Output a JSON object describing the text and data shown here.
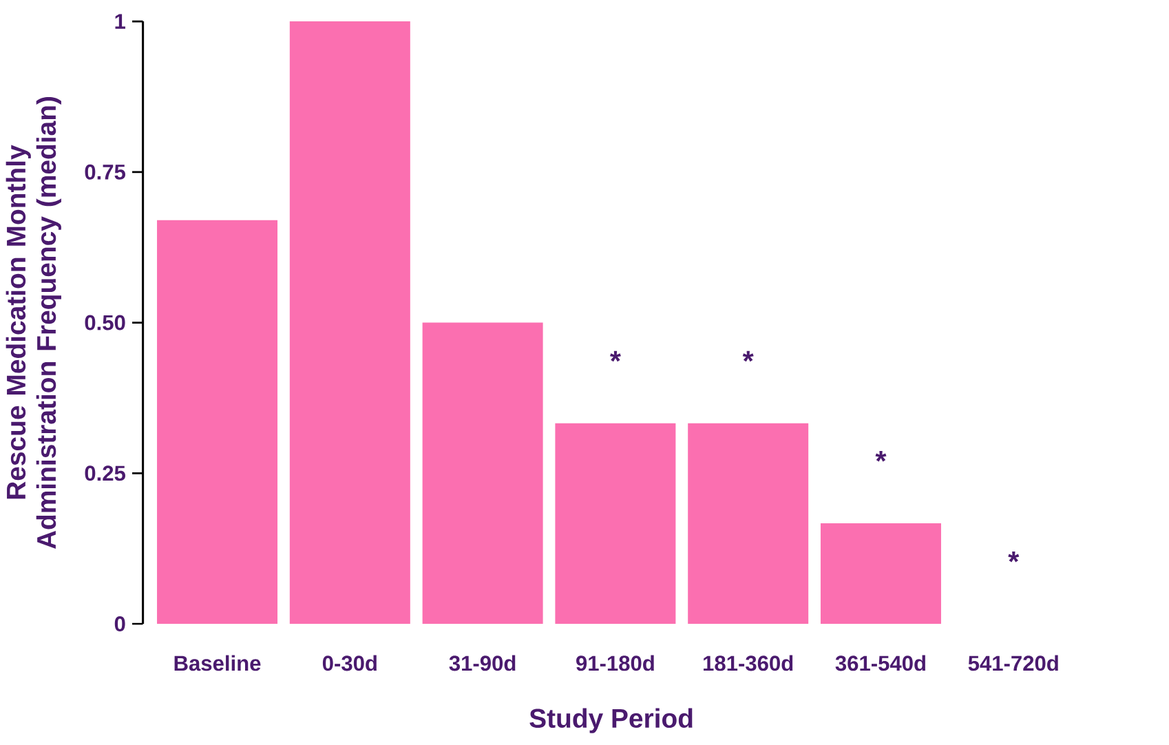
{
  "chart_data": {
    "type": "bar",
    "xlabel": "Study Period",
    "ylabel": "Rescue Medication Monthly Administration Frequency (median)",
    "categories": [
      "Baseline",
      "0-30d",
      "31-90d",
      "91-180d",
      "181-360d",
      "361-540d",
      "541-720d"
    ],
    "values": [
      0.67,
      1.0,
      0.5,
      0.333,
      0.333,
      0.167,
      0
    ],
    "color": "#fb6fb0",
    "ylim": [
      0,
      1
    ],
    "yticks": [
      0,
      0.25,
      {
        "value": 0.5,
        "label": "0.50"
      },
      0.75,
      1
    ],
    "grid": false,
    "annotations": [
      {
        "text": "*",
        "x": "91-180d",
        "y": 0.333
      },
      {
        "text": "*",
        "x": "181-360d",
        "y": 0.333
      },
      {
        "text": "*",
        "x": "361-540d",
        "y": 0.167
      },
      {
        "text": "*",
        "x": "541-720d",
        "y": 0
      }
    ]
  }
}
